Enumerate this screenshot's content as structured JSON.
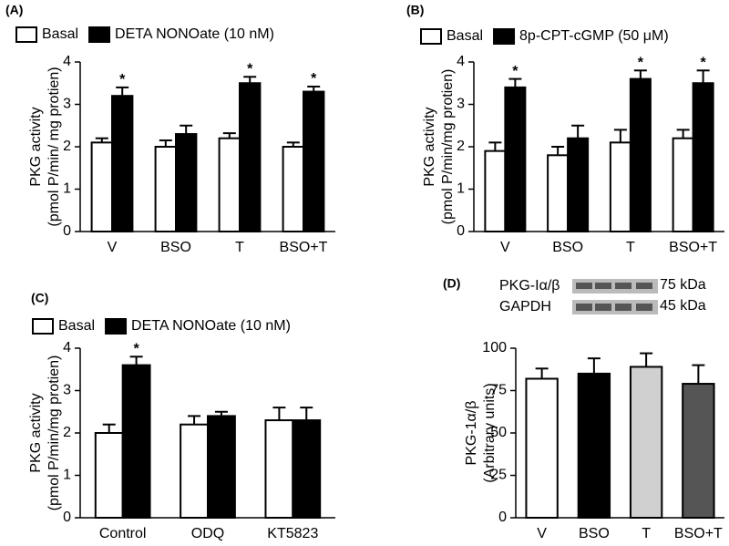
{
  "chart_data": [
    {
      "type": "bar",
      "label": "(A)",
      "ylabel": [
        "PKG activity",
        "(pmol P/min/ mg protien)"
      ],
      "categories": [
        "V",
        "BSO",
        "T",
        "BSO+T"
      ],
      "series": [
        {
          "name": "Basal",
          "color": "#ffffff",
          "values": [
            2.1,
            2.0,
            2.2,
            2.0
          ],
          "errors": [
            0.1,
            0.15,
            0.12,
            0.1
          ],
          "labels": [
            null,
            null,
            null,
            null
          ]
        },
        {
          "name": "DETA NONOate (10 nM)",
          "color": "#000000",
          "values": [
            3.2,
            2.3,
            3.5,
            3.3
          ],
          "errors": [
            0.2,
            0.2,
            0.15,
            0.12
          ],
          "labels": [
            "*",
            null,
            "*",
            "*"
          ]
        }
      ],
      "ylim": [
        0,
        4
      ],
      "yticks": [
        0,
        1,
        2,
        3,
        4
      ]
    },
    {
      "type": "bar",
      "label": "(B)",
      "ylabel": [
        "PKG activity",
        "(pmol P/min/mg protien)"
      ],
      "categories": [
        "V",
        "BSO",
        "T",
        "BSO+T"
      ],
      "series": [
        {
          "name": "Basal",
          "color": "#ffffff",
          "values": [
            1.9,
            1.8,
            2.1,
            2.2
          ],
          "errors": [
            0.2,
            0.2,
            0.3,
            0.2
          ],
          "labels": [
            null,
            null,
            null,
            null
          ]
        },
        {
          "name": "8p-CPT-cGMP (50 μM)",
          "color": "#000000",
          "values": [
            3.4,
            2.2,
            3.6,
            3.5
          ],
          "errors": [
            0.2,
            0.3,
            0.2,
            0.3
          ],
          "labels": [
            "*",
            null,
            "*",
            "*"
          ]
        }
      ],
      "ylim": [
        0,
        4
      ],
      "yticks": [
        0,
        1,
        2,
        3,
        4
      ]
    },
    {
      "type": "bar",
      "label": "(C)",
      "ylabel": [
        "PKG activity",
        "(pmol P/min/mg protien)"
      ],
      "categories": [
        "Control",
        "ODQ",
        "KT5823"
      ],
      "series": [
        {
          "name": "Basal",
          "color": "#ffffff",
          "values": [
            2.0,
            2.2,
            2.3
          ],
          "errors": [
            0.2,
            0.2,
            0.3
          ],
          "labels": [
            null,
            null,
            null
          ]
        },
        {
          "name": "DETA NONOate (10 nM)",
          "color": "#000000",
          "values": [
            3.6,
            2.4,
            2.3
          ],
          "errors": [
            0.2,
            0.1,
            0.3
          ],
          "labels": [
            "*",
            null,
            null
          ]
        }
      ],
      "ylim": [
        0,
        4
      ],
      "yticks": [
        0,
        1,
        2,
        3,
        4
      ]
    },
    {
      "type": "single",
      "label": "(D)",
      "ylabel": [
        "PKG-1α/β",
        "(Arbitrary units)"
      ],
      "categories": [
        "V",
        "BSO",
        "T",
        "BSO+T"
      ],
      "values": [
        82,
        85,
        89,
        79
      ],
      "errors": [
        6,
        9,
        8,
        11
      ],
      "colors": [
        "#ffffff",
        "#000000",
        "#d0d0d0",
        "#555555"
      ],
      "ylim": [
        0,
        100
      ],
      "yticks": [
        0,
        25,
        50,
        75,
        100
      ],
      "blot": {
        "proteins": [
          "PKG-Iα/β",
          "GAPDH"
        ],
        "sizes": [
          "75 kDa",
          "45 kDa"
        ]
      }
    }
  ]
}
